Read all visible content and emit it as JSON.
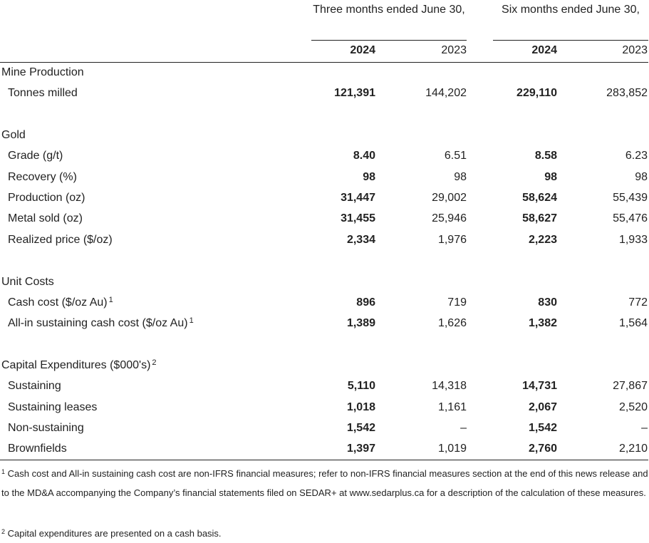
{
  "header": {
    "period_three": "Three months ended June 30,",
    "period_six": "Six months ended June 30,",
    "years": [
      {
        "label": "2024",
        "bold": true
      },
      {
        "label": "2023",
        "bold": false
      },
      {
        "label": "2024",
        "bold": true
      },
      {
        "label": "2023",
        "bold": false
      }
    ]
  },
  "rows": [
    {
      "label": "Mine Production",
      "type": "section",
      "values": [
        "",
        "",
        "",
        ""
      ]
    },
    {
      "label": "Tonnes milled",
      "type": "item",
      "values": [
        "121,391",
        "144,202",
        "229,110",
        "283,852"
      ]
    },
    {
      "label": "",
      "type": "spacer",
      "values": [
        "",
        "",
        "",
        ""
      ]
    },
    {
      "label": "Gold",
      "type": "section",
      "values": [
        "",
        "",
        "",
        ""
      ]
    },
    {
      "label": "Grade (g/t)",
      "type": "item",
      "values": [
        "8.40",
        "6.51",
        "8.58",
        "6.23"
      ]
    },
    {
      "label": "Recovery (%)",
      "type": "item",
      "values": [
        "98",
        "98",
        "98",
        "98"
      ]
    },
    {
      "label": "Production (oz)",
      "type": "item",
      "values": [
        "31,447",
        "29,002",
        "58,624",
        "55,439"
      ]
    },
    {
      "label": "Metal sold (oz)",
      "type": "item",
      "values": [
        "31,455",
        "25,946",
        "58,627",
        "55,476"
      ]
    },
    {
      "label": "Realized price ($/oz)",
      "type": "item",
      "values": [
        "2,334",
        "1,976",
        "2,223",
        "1,933"
      ]
    },
    {
      "label": "",
      "type": "spacer",
      "values": [
        "",
        "",
        "",
        ""
      ]
    },
    {
      "label": "Unit Costs",
      "type": "section",
      "values": [
        "",
        "",
        "",
        ""
      ]
    },
    {
      "label": "Cash cost ($/oz Au)",
      "sup": "1",
      "type": "item",
      "values": [
        "896",
        "719",
        "830",
        "772"
      ]
    },
    {
      "label": "All-in sustaining cash cost ($/oz Au)",
      "sup": "1",
      "type": "item",
      "values": [
        "1,389",
        "1,626",
        "1,382",
        "1,564"
      ]
    },
    {
      "label": "",
      "type": "spacer",
      "values": [
        "",
        "",
        "",
        ""
      ]
    },
    {
      "label": "Capital Expenditures ($000's)",
      "sup": "2",
      "type": "section",
      "values": [
        "",
        "",
        "",
        ""
      ]
    },
    {
      "label": "Sustaining",
      "type": "item",
      "values": [
        "5,110",
        "14,318",
        "14,731",
        "27,867"
      ]
    },
    {
      "label": "Sustaining leases",
      "type": "item",
      "values": [
        "1,018",
        "1,161",
        "2,067",
        "2,520"
      ]
    },
    {
      "label": "Non-sustaining",
      "type": "item",
      "values": [
        "1,542",
        "–",
        "1,542",
        "–"
      ]
    },
    {
      "label": "Brownfields",
      "type": "item",
      "values": [
        "1,397",
        "1,019",
        "2,760",
        "2,210"
      ]
    }
  ],
  "footnotes": [
    {
      "mark": "1",
      "text": "Cash cost and All-in sustaining cash cost are non-IFRS financial measures; refer to non-IFRS financial measures section at the end of this news release and to the MD&A accompanying the Company’s financial statements filed on SEDAR+ at www.sedarplus.ca for a description of the calculation of these measures."
    },
    {
      "mark": "2",
      "text": "Capital expenditures are presented on a cash basis."
    }
  ]
}
